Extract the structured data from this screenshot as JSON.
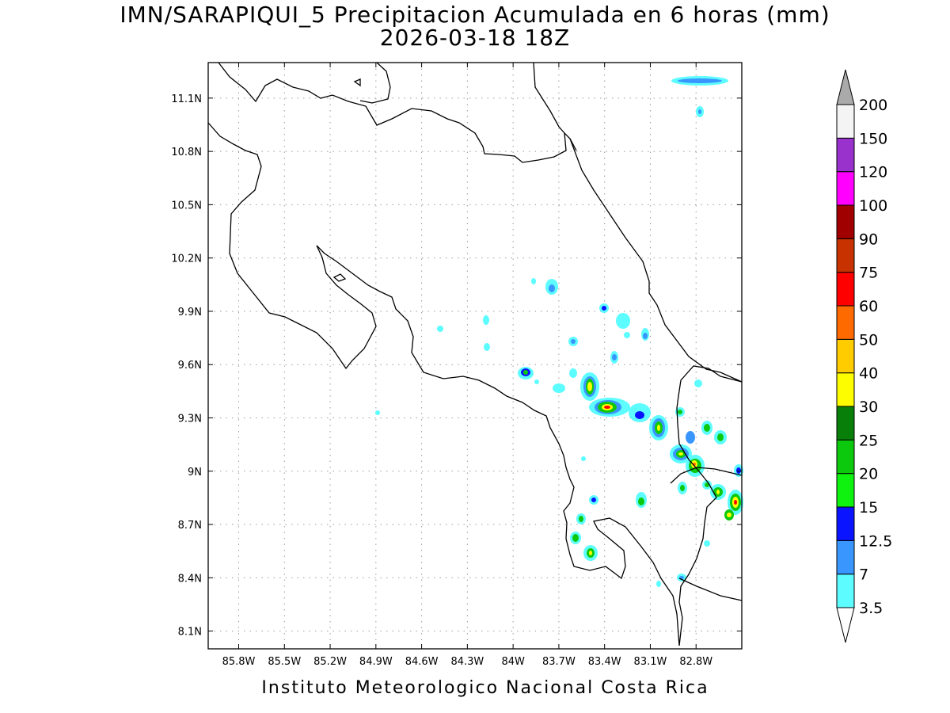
{
  "title_line1": "IMN/SARAPIQUI_5 Precipitacion Acumulada en 6 horas (mm)",
  "title_line2": "2026-03-18 18Z",
  "footer": "Instituto Meteorologico Nacional Costa Rica",
  "map": {
    "lon_range": [
      -86.0,
      -82.5
    ],
    "lat_range": [
      8.0,
      11.3
    ],
    "lon_labels": [
      "85.8W",
      "85.5W",
      "85.2W",
      "84.9W",
      "84.6W",
      "84.3W",
      "84W",
      "83.7W",
      "83.4W",
      "83.1W",
      "82.8W"
    ],
    "lon_values": [
      -85.8,
      -85.5,
      -85.2,
      -84.9,
      -84.6,
      -84.3,
      -84.0,
      -83.7,
      -83.4,
      -83.1,
      -82.8
    ],
    "lat_labels": [
      "11.1N",
      "10.8N",
      "10.5N",
      "10.2N",
      "9.9N",
      "9.6N",
      "9.3N",
      "9N",
      "8.7N",
      "8.4N",
      "8.1N"
    ],
    "lat_values": [
      11.1,
      10.8,
      10.5,
      10.2,
      9.9,
      9.6,
      9.3,
      9.0,
      8.7,
      8.4,
      8.1
    ],
    "grid": "dotted"
  },
  "colorbar": {
    "units": "mm",
    "levels": [
      "3.5",
      "7",
      "12.5",
      "15",
      "20",
      "25",
      "30",
      "40",
      "50",
      "60",
      "75",
      "90",
      "100",
      "120",
      "150",
      "200"
    ],
    "colors": [
      "#5dfcff",
      "#3a96ff",
      "#0a14ff",
      "#0ff20f",
      "#0dc90d",
      "#087f08",
      "#fdfd00",
      "#ffcc00",
      "#ff6a00",
      "#ff0000",
      "#c83200",
      "#a00000",
      "#ff00ff",
      "#9932cc",
      "#f4f4f4"
    ],
    "under_color": "#ffffff",
    "over_color": "#aaaaaa"
  }
}
